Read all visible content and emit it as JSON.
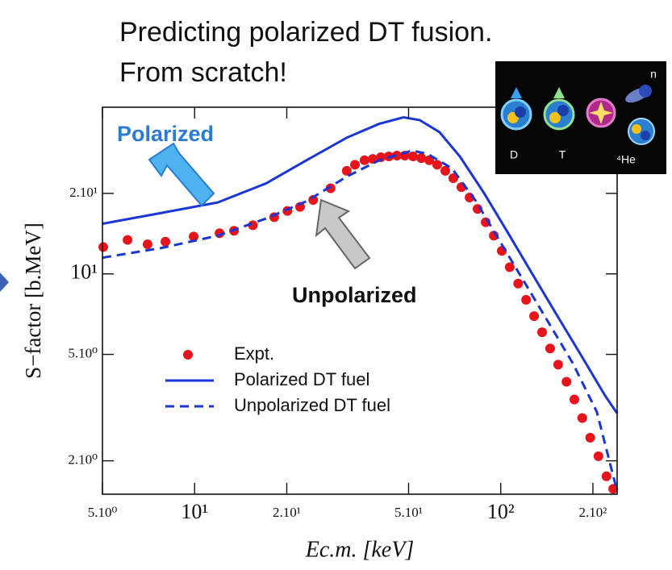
{
  "header": {
    "title_lines": [
      "Predicting polarized DT fusion.",
      "From scratch!"
    ]
  },
  "inset": {
    "labels": [
      "D",
      "T",
      "⁴He",
      "n"
    ]
  },
  "chart_data": {
    "type": "line",
    "x_label": "Ec.m. [keV]",
    "y_label": "S−factor [b.MeV]",
    "xscale": "log",
    "yscale": "log",
    "xlim": [
      5,
      240
    ],
    "ylim": [
      1.5,
      42
    ],
    "xticks": [
      {
        "value": 5,
        "label": "5.10⁰"
      },
      {
        "value": 10,
        "label": "10¹"
      },
      {
        "value": 20,
        "label": "2.10¹"
      },
      {
        "value": 50,
        "label": "5.10¹"
      },
      {
        "value": 100,
        "label": "10²"
      },
      {
        "value": 200,
        "label": "2.10²"
      }
    ],
    "yticks": [
      {
        "value": 2,
        "label": "2.10⁰"
      },
      {
        "value": 5,
        "label": "5.10⁰"
      },
      {
        "value": 10,
        "label": "10¹"
      },
      {
        "value": 20,
        "label": "2.10¹"
      }
    ],
    "legend": "center-left",
    "series": [
      {
        "name": "Expt.",
        "type": "scatter",
        "color": "#e8141c",
        "x": [
          5.03,
          6.04,
          7.02,
          8.03,
          9.93,
          12.06,
          13.45,
          15.5,
          18.2,
          20.1,
          22.1,
          24.4,
          27.8,
          31.4,
          33.4,
          35.9,
          38.2,
          40.6,
          43.1,
          45.8,
          48.6,
          51.7,
          55.0,
          58.4,
          62.0,
          65.9,
          70.0,
          74.4,
          79.1,
          84.0,
          89.3,
          94.9,
          100.8,
          107,
          114,
          121,
          128.5,
          136.5,
          145,
          154,
          164,
          174,
          184.6,
          196,
          208.5,
          221.5,
          233
        ],
        "values": [
          12.6,
          13.4,
          12.9,
          13.2,
          13.8,
          14.2,
          14.5,
          15.2,
          16.3,
          17.2,
          17.8,
          18.9,
          20.9,
          24.3,
          25.6,
          26.6,
          26.9,
          27.3,
          27.5,
          27.7,
          27.7,
          27.5,
          27.1,
          26.6,
          25.6,
          24.3,
          22.8,
          21.1,
          19.3,
          17.5,
          15.6,
          13.9,
          12.2,
          10.6,
          9.2,
          8.0,
          6.95,
          6.05,
          5.26,
          4.58,
          3.95,
          3.39,
          2.89,
          2.44,
          2.08,
          1.75,
          1.57
        ]
      },
      {
        "name": "Polarized DT fuel",
        "type": "line",
        "style": "solid",
        "color": "#1a35d6",
        "x": [
          5,
          7.79,
          11.9,
          17.1,
          23.2,
          31.4,
          40.1,
          48.1,
          54.3,
          63.1,
          73.5,
          88.1,
          105.7,
          126.8,
          152,
          182.6,
          219,
          240
        ],
        "values": [
          15.4,
          16.9,
          18.5,
          21.8,
          26.6,
          32.3,
          36.4,
          38.5,
          37.6,
          33.9,
          27.5,
          20.1,
          14.2,
          10,
          7.06,
          4.98,
          3.51,
          3.01
        ]
      },
      {
        "name": "Unpolarized DT fuel",
        "type": "line",
        "style": "dashed",
        "color": "#1a35d6",
        "x": [
          5,
          7.79,
          11.9,
          17.1,
          23.2,
          31.4,
          40.1,
          51.3,
          57.7,
          69.3,
          83.0,
          99.5,
          119.4,
          143.2,
          171.8,
          206,
          240
        ],
        "values": [
          11.5,
          12.5,
          13.9,
          16.1,
          18.7,
          23.1,
          26.6,
          28.9,
          28.1,
          24.8,
          18.7,
          13.2,
          9.33,
          6.58,
          4.64,
          3.05,
          1.54
        ]
      }
    ],
    "annotations": [
      {
        "text": "Polarized",
        "color": "#2b7bd6"
      },
      {
        "text": "Unpolarized",
        "color": "#111111"
      }
    ]
  }
}
